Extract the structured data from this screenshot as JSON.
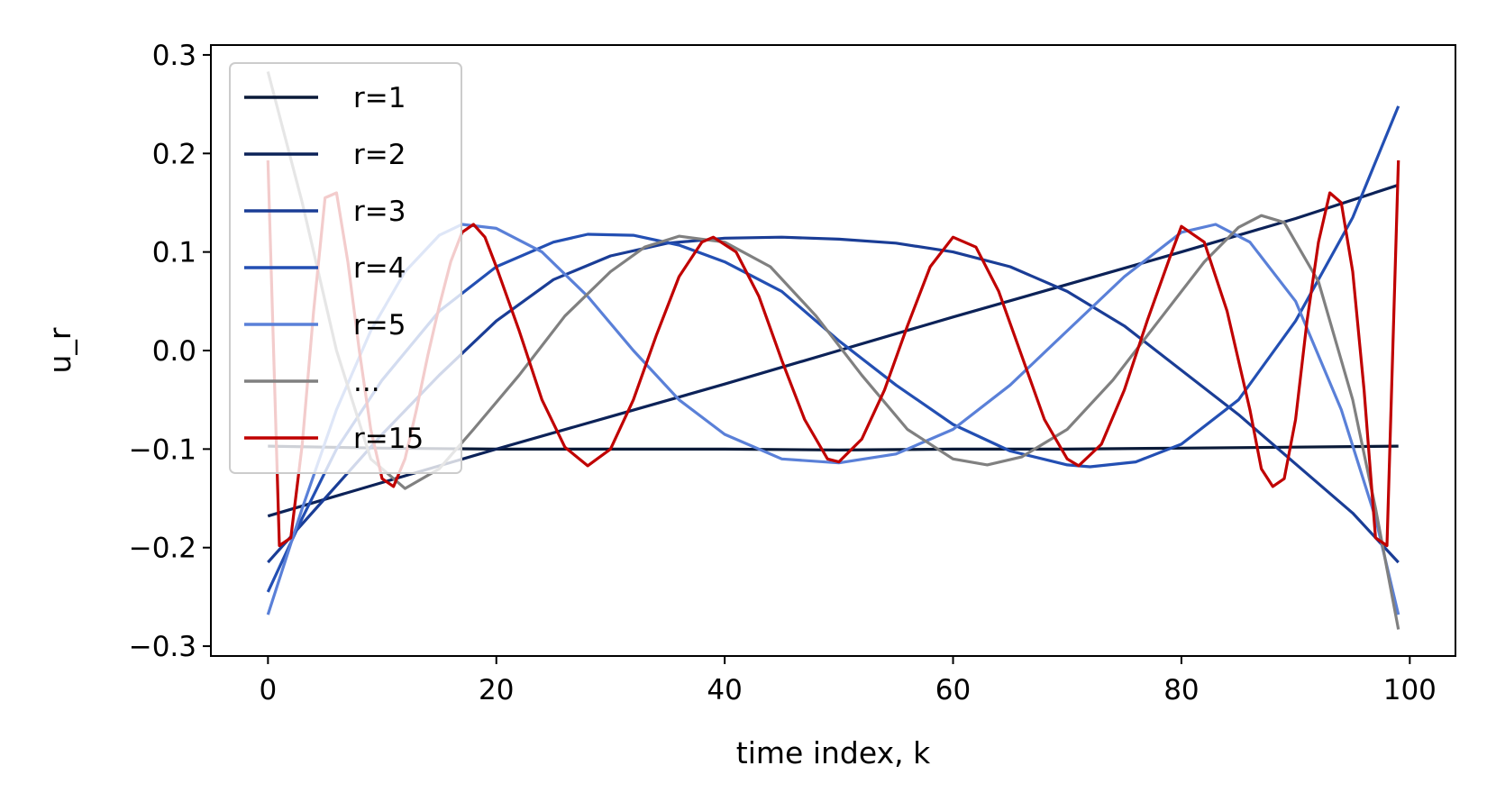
{
  "chart_data": {
    "type": "line",
    "title": "",
    "xlabel": "time index, k",
    "ylabel": "u_r",
    "xlim": [
      -5,
      104
    ],
    "ylim": [
      -0.31,
      0.31
    ],
    "x_ticks": [
      0,
      20,
      40,
      60,
      80,
      100
    ],
    "x_tick_labels": [
      "0",
      "20",
      "40",
      "60",
      "80",
      "100"
    ],
    "y_ticks": [
      -0.3,
      -0.2,
      -0.1,
      0.0,
      0.1,
      0.2,
      0.3
    ],
    "y_tick_labels": [
      "−0.3",
      "−0.2",
      "−0.1",
      "0.0",
      "0.1",
      "0.2",
      "0.3"
    ],
    "grid": false,
    "legend_position": "upper-left",
    "x_range": [
      0,
      99
    ],
    "series": [
      {
        "name": "r=1",
        "color": "#0a1a38",
        "points": [
          [
            0,
            -0.097
          ],
          [
            10,
            -0.099
          ],
          [
            20,
            -0.1
          ],
          [
            30,
            -0.1
          ],
          [
            40,
            -0.1
          ],
          [
            50,
            -0.101
          ],
          [
            60,
            -0.1
          ],
          [
            70,
            -0.1
          ],
          [
            80,
            -0.099
          ],
          [
            90,
            -0.098
          ],
          [
            99,
            -0.097
          ]
        ]
      },
      {
        "name": "r=2",
        "color": "#0c2258",
        "points": [
          [
            0,
            -0.168
          ],
          [
            10,
            -0.134
          ],
          [
            20,
            -0.1
          ],
          [
            30,
            -0.067
          ],
          [
            40,
            -0.034
          ],
          [
            50,
            0.0
          ],
          [
            60,
            0.034
          ],
          [
            70,
            0.067
          ],
          [
            80,
            0.1
          ],
          [
            90,
            0.134
          ],
          [
            99,
            0.168
          ]
        ]
      },
      {
        "name": "r=3",
        "color": "#1a3d96",
        "points": [
          [
            0,
            -0.215
          ],
          [
            5,
            -0.15
          ],
          [
            10,
            -0.085
          ],
          [
            15,
            -0.025
          ],
          [
            20,
            0.03
          ],
          [
            25,
            0.072
          ],
          [
            30,
            0.096
          ],
          [
            35,
            0.109
          ],
          [
            40,
            0.114
          ],
          [
            45,
            0.115
          ],
          [
            50,
            0.113
          ],
          [
            55,
            0.109
          ],
          [
            60,
            0.1
          ],
          [
            65,
            0.085
          ],
          [
            70,
            0.06
          ],
          [
            75,
            0.025
          ],
          [
            80,
            -0.02
          ],
          [
            85,
            -0.065
          ],
          [
            90,
            -0.115
          ],
          [
            95,
            -0.165
          ],
          [
            99,
            -0.215
          ]
        ]
      },
      {
        "name": "r=4",
        "color": "#234fb3",
        "points": [
          [
            0,
            -0.245
          ],
          [
            3,
            -0.17
          ],
          [
            6,
            -0.1
          ],
          [
            10,
            -0.03
          ],
          [
            15,
            0.04
          ],
          [
            20,
            0.085
          ],
          [
            25,
            0.11
          ],
          [
            28,
            0.118
          ],
          [
            32,
            0.117
          ],
          [
            36,
            0.107
          ],
          [
            40,
            0.09
          ],
          [
            45,
            0.06
          ],
          [
            50,
            0.01
          ],
          [
            55,
            -0.035
          ],
          [
            60,
            -0.075
          ],
          [
            65,
            -0.102
          ],
          [
            70,
            -0.116
          ],
          [
            72,
            -0.118
          ],
          [
            76,
            -0.113
          ],
          [
            80,
            -0.095
          ],
          [
            85,
            -0.05
          ],
          [
            90,
            0.03
          ],
          [
            95,
            0.135
          ],
          [
            99,
            0.248
          ]
        ]
      },
      {
        "name": "r=5",
        "color": "#5a80d8",
        "points": [
          [
            0,
            -0.268
          ],
          [
            3,
            -0.16
          ],
          [
            6,
            -0.06
          ],
          [
            9,
            0.02
          ],
          [
            12,
            0.08
          ],
          [
            15,
            0.117
          ],
          [
            17,
            0.128
          ],
          [
            20,
            0.124
          ],
          [
            24,
            0.1
          ],
          [
            28,
            0.055
          ],
          [
            32,
            0.0
          ],
          [
            36,
            -0.05
          ],
          [
            40,
            -0.085
          ],
          [
            45,
            -0.11
          ],
          [
            50,
            -0.114
          ],
          [
            55,
            -0.105
          ],
          [
            60,
            -0.08
          ],
          [
            65,
            -0.035
          ],
          [
            70,
            0.02
          ],
          [
            75,
            0.075
          ],
          [
            80,
            0.12
          ],
          [
            83,
            0.128
          ],
          [
            86,
            0.11
          ],
          [
            90,
            0.05
          ],
          [
            94,
            -0.06
          ],
          [
            97,
            -0.17
          ],
          [
            99,
            -0.268
          ]
        ]
      },
      {
        "name": "...",
        "color": "#808080",
        "points": [
          [
            0,
            0.283
          ],
          [
            3,
            0.15
          ],
          [
            6,
            0.0
          ],
          [
            9,
            -0.11
          ],
          [
            12,
            -0.14
          ],
          [
            15,
            -0.12
          ],
          [
            18,
            -0.08
          ],
          [
            22,
            -0.025
          ],
          [
            26,
            0.035
          ],
          [
            30,
            0.08
          ],
          [
            33,
            0.105
          ],
          [
            36,
            0.116
          ],
          [
            40,
            0.11
          ],
          [
            44,
            0.085
          ],
          [
            48,
            0.035
          ],
          [
            52,
            -0.025
          ],
          [
            56,
            -0.08
          ],
          [
            60,
            -0.11
          ],
          [
            63,
            -0.116
          ],
          [
            66,
            -0.108
          ],
          [
            70,
            -0.08
          ],
          [
            74,
            -0.03
          ],
          [
            78,
            0.03
          ],
          [
            82,
            0.09
          ],
          [
            85,
            0.125
          ],
          [
            87,
            0.137
          ],
          [
            89,
            0.13
          ],
          [
            92,
            0.07
          ],
          [
            95,
            -0.05
          ],
          [
            97,
            -0.16
          ],
          [
            99,
            -0.283
          ]
        ]
      },
      {
        "name": "r=15",
        "color": "#c00000",
        "points": [
          [
            0,
            0.193
          ],
          [
            1,
            -0.198
          ],
          [
            2,
            -0.19
          ],
          [
            3,
            -0.095
          ],
          [
            4,
            0.04
          ],
          [
            5,
            0.155
          ],
          [
            6,
            0.16
          ],
          [
            7,
            0.09
          ],
          [
            8,
            0.0
          ],
          [
            9,
            -0.08
          ],
          [
            10,
            -0.13
          ],
          [
            11,
            -0.138
          ],
          [
            12,
            -0.11
          ],
          [
            13,
            -0.06
          ],
          [
            14,
            -0.005
          ],
          [
            15,
            0.045
          ],
          [
            16,
            0.09
          ],
          [
            17,
            0.12
          ],
          [
            18,
            0.128
          ],
          [
            19,
            0.115
          ],
          [
            20,
            0.085
          ],
          [
            22,
            0.02
          ],
          [
            24,
            -0.05
          ],
          [
            26,
            -0.098
          ],
          [
            28,
            -0.117
          ],
          [
            30,
            -0.1
          ],
          [
            32,
            -0.05
          ],
          [
            34,
            0.015
          ],
          [
            36,
            0.075
          ],
          [
            38,
            0.11
          ],
          [
            39,
            0.115
          ],
          [
            41,
            0.1
          ],
          [
            43,
            0.055
          ],
          [
            45,
            -0.01
          ],
          [
            47,
            -0.07
          ],
          [
            49,
            -0.11
          ],
          [
            50,
            -0.113
          ],
          [
            52,
            -0.09
          ],
          [
            54,
            -0.04
          ],
          [
            56,
            0.025
          ],
          [
            58,
            0.085
          ],
          [
            60,
            0.115
          ],
          [
            62,
            0.105
          ],
          [
            64,
            0.06
          ],
          [
            66,
            -0.005
          ],
          [
            68,
            -0.07
          ],
          [
            70,
            -0.11
          ],
          [
            71,
            -0.117
          ],
          [
            73,
            -0.095
          ],
          [
            75,
            -0.04
          ],
          [
            77,
            0.03
          ],
          [
            79,
            0.095
          ],
          [
            80,
            0.126
          ],
          [
            82,
            0.11
          ],
          [
            84,
            0.04
          ],
          [
            86,
            -0.06
          ],
          [
            87,
            -0.12
          ],
          [
            88,
            -0.138
          ],
          [
            89,
            -0.13
          ],
          [
            90,
            -0.07
          ],
          [
            91,
            0.03
          ],
          [
            92,
            0.11
          ],
          [
            93,
            0.16
          ],
          [
            94,
            0.15
          ],
          [
            95,
            0.08
          ],
          [
            96,
            -0.04
          ],
          [
            97,
            -0.19
          ],
          [
            98,
            -0.198
          ],
          [
            99,
            0.193
          ]
        ]
      }
    ]
  }
}
